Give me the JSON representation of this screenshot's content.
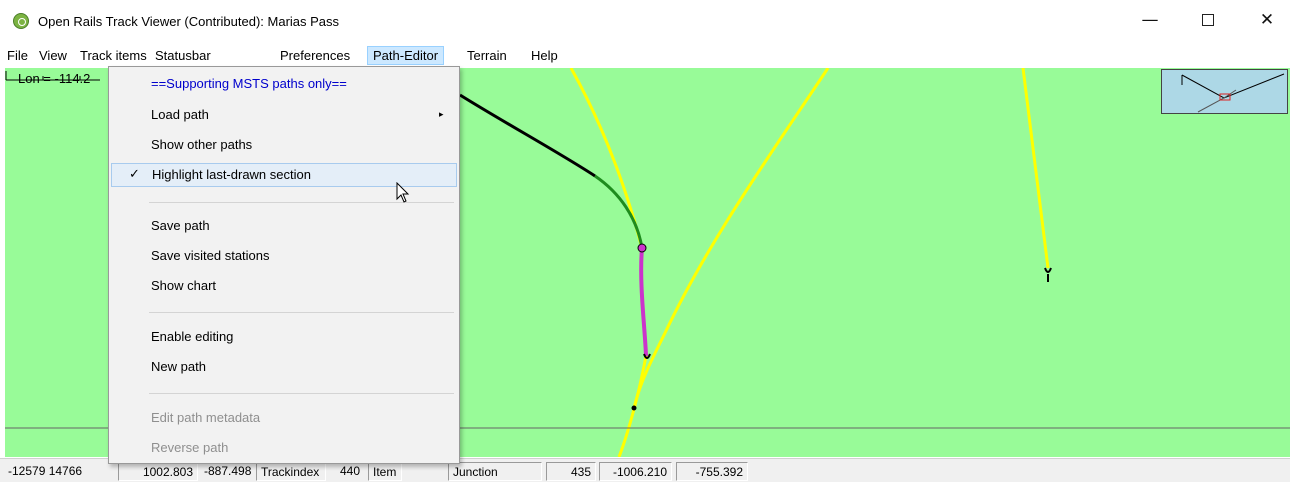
{
  "window": {
    "title": "Open Rails Track Viewer (Contributed): Marias Pass",
    "icons": {
      "app": "open-rails-icon",
      "minimize": "minimize-icon",
      "maximize": "maximize-icon",
      "close": "close-icon"
    },
    "minimize_glyph": "—",
    "close_glyph": "✕"
  },
  "menubar": {
    "items": [
      "File",
      "View",
      "Track items",
      "Statusbar",
      "Preferences",
      "Path-Editor",
      "Terrain",
      "Help"
    ],
    "active": "Path-Editor"
  },
  "canvas": {
    "lon_label": "Lon = -114.2",
    "background_color": "#98fb98",
    "track_colors": {
      "track": "#ffff00",
      "path": "#000000",
      "last_drawn": "#1e8c1e",
      "highlight": "#cc33cc",
      "node": "#000000"
    }
  },
  "path_editor_menu": {
    "items": [
      {
        "label": "==Supporting MSTS paths only==",
        "state": "header"
      },
      {
        "label": "Load path",
        "state": "normal",
        "submenu": true,
        "submenu_glyph": "▸"
      },
      {
        "label": "Show other paths",
        "state": "normal"
      },
      {
        "label": "Highlight last-drawn section",
        "state": "checked",
        "check_glyph": "✓"
      },
      {
        "label": "Save path",
        "state": "normal"
      },
      {
        "label": "Save visited stations",
        "state": "normal"
      },
      {
        "label": "Show chart",
        "state": "normal"
      },
      {
        "label": "Enable editing",
        "state": "normal"
      },
      {
        "label": "New path",
        "state": "normal"
      },
      {
        "label": "Edit path metadata",
        "state": "disabled"
      },
      {
        "label": "Reverse path",
        "state": "disabled"
      }
    ]
  },
  "statusbar": {
    "tile": "-12579 14766",
    "x": "1002.803",
    "z": "-887.498",
    "trackindex_label": "Trackindex",
    "trackindex": "440",
    "item_label": "Item",
    "item_type": "Junction",
    "item_index": "435",
    "coord_a": "-1006.210",
    "coord_b": "-755.392"
  }
}
